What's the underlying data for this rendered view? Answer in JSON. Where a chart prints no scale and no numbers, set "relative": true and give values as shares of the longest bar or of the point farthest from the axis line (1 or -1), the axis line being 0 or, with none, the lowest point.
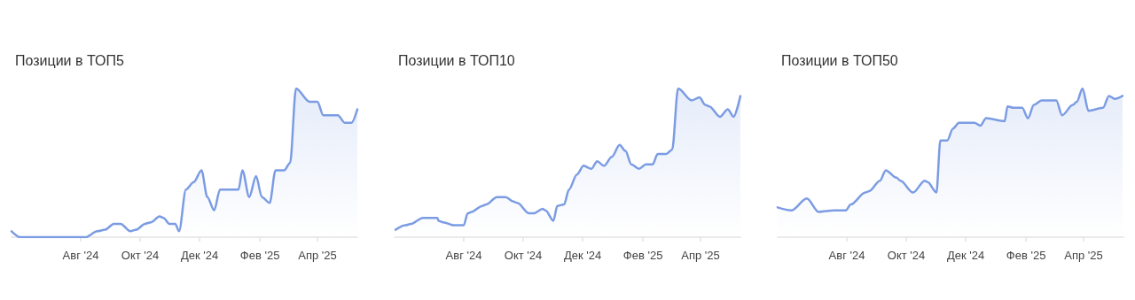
{
  "chart_data": [
    {
      "type": "area",
      "title": "Позиции в ТОП5",
      "color": "#7b9ce3",
      "relative": true,
      "marker": "none",
      "xlim": [
        "2024-05-22",
        "2025-05-12"
      ],
      "xticks": [
        {
          "value": "2024-08-01",
          "label": "Авг '24"
        },
        {
          "value": "2024-10-01",
          "label": "Окт '24"
        },
        {
          "value": "2024-12-01",
          "label": "Дек '24"
        },
        {
          "value": "2025-02-01",
          "label": "Фев '25"
        },
        {
          "value": "2025-04-01",
          "label": "Апр '25"
        }
      ],
      "x": [
        "2024-05-22",
        "2024-05-31",
        "2024-08-06",
        "2024-08-18",
        "2024-08-26",
        "2024-09-04",
        "2024-09-11",
        "2024-09-21",
        "2024-09-27",
        "2024-10-06",
        "2024-10-12",
        "2024-10-21",
        "2024-10-25",
        "2024-10-31",
        "2024-11-06",
        "2024-11-10",
        "2024-11-17",
        "2024-11-25",
        "2024-12-03",
        "2024-12-09",
        "2024-12-16",
        "2024-12-22",
        "2025-01-10",
        "2025-01-14",
        "2025-01-21",
        "2025-01-28",
        "2025-02-03",
        "2025-02-11",
        "2025-02-17",
        "2025-02-26",
        "2025-03-04",
        "2025-03-10",
        "2025-03-24",
        "2025-04-01",
        "2025-04-07",
        "2025-04-22",
        "2025-04-29",
        "2025-05-06",
        "2025-05-12"
      ],
      "values": [
        0.04,
        0,
        0,
        0.04,
        0.05,
        0.09,
        0.09,
        0.04,
        0.05,
        0.09,
        0.1,
        0.14,
        0.13,
        0.09,
        0.09,
        0.04,
        0.32,
        0.37,
        0.45,
        0.27,
        0.18,
        0.32,
        0.32,
        0.45,
        0.27,
        0.41,
        0.27,
        0.23,
        0.45,
        0.45,
        0.5,
        1,
        0.91,
        0.91,
        0.82,
        0.82,
        0.77,
        0.77,
        0.86
      ]
    },
    {
      "type": "area",
      "title": "Позиции в ТОП10",
      "color": "#7b9ce3",
      "relative": true,
      "marker": "none",
      "xlim": [
        "2024-05-22",
        "2025-05-12"
      ],
      "xticks": [
        {
          "value": "2024-08-01",
          "label": "Авг '24"
        },
        {
          "value": "2024-10-01",
          "label": "Окт '24"
        },
        {
          "value": "2024-12-01",
          "label": "Дек '24"
        },
        {
          "value": "2025-02-01",
          "label": "Фев '25"
        },
        {
          "value": "2025-04-01",
          "label": "Апр '25"
        }
      ],
      "x": [
        "2024-05-23",
        "2024-06-02",
        "2024-06-08",
        "2024-06-20",
        "2024-07-05",
        "2024-07-06",
        "2024-07-11",
        "2024-07-22",
        "2024-08-01",
        "2024-08-05",
        "2024-08-09",
        "2024-08-20",
        "2024-08-24",
        "2024-09-04",
        "2024-09-13",
        "2024-09-21",
        "2024-09-25",
        "2024-10-07",
        "2024-10-12",
        "2024-10-21",
        "2024-10-24",
        "2024-11-01",
        "2024-11-05",
        "2024-11-12",
        "2024-11-17",
        "2024-11-25",
        "2024-12-02",
        "2024-12-10",
        "2024-12-16",
        "2024-12-23",
        "2024-12-31",
        "2025-01-08",
        "2025-01-14",
        "2025-01-20",
        "2025-01-28",
        "2025-02-04",
        "2025-02-11",
        "2025-02-16",
        "2025-02-25",
        "2025-03-03",
        "2025-03-09",
        "2025-03-23",
        "2025-03-31",
        "2025-04-06",
        "2025-04-10",
        "2025-04-21",
        "2025-04-29",
        "2025-05-05",
        "2025-05-12"
      ],
      "values": [
        0.05,
        0.08,
        0.09,
        0.13,
        0.13,
        0.11,
        0.1,
        0.08,
        0.08,
        0.16,
        0.17,
        0.21,
        0.22,
        0.27,
        0.27,
        0.24,
        0.23,
        0.16,
        0.16,
        0.19,
        0.18,
        0.11,
        0.21,
        0.22,
        0.32,
        0.42,
        0.48,
        0.46,
        0.51,
        0.48,
        0.54,
        0.62,
        0.58,
        0.49,
        0.46,
        0.49,
        0.49,
        0.56,
        0.56,
        0.59,
        1,
        0.92,
        0.94,
        0.89,
        0.88,
        0.81,
        0.86,
        0.81,
        0.95
      ]
    },
    {
      "type": "area",
      "title": "Позиции в ТОП50",
      "color": "#7b9ce3",
      "relative": true,
      "marker": "none",
      "xlim": [
        "2024-05-22",
        "2025-05-12"
      ],
      "xticks": [
        {
          "value": "2024-08-01",
          "label": "Авг '24"
        },
        {
          "value": "2024-10-01",
          "label": "Окт '24"
        },
        {
          "value": "2024-12-01",
          "label": "Дек '24"
        },
        {
          "value": "2025-02-01",
          "label": "Фев '25"
        },
        {
          "value": "2025-04-01",
          "label": "Апр '25"
        }
      ],
      "x": [
        "2024-05-22",
        "2024-06-05",
        "2024-06-21",
        "2024-07-03",
        "2024-07-19",
        "2024-07-31",
        "2024-08-05",
        "2024-08-20",
        "2024-08-24",
        "2024-09-04",
        "2024-09-10",
        "2024-09-21",
        "2024-09-25",
        "2024-10-08",
        "2024-10-20",
        "2024-10-23",
        "2024-11-01",
        "2024-11-05",
        "2024-11-12",
        "2024-11-18",
        "2024-11-24",
        "2024-12-10",
        "2024-12-16",
        "2024-12-22",
        "2025-01-10",
        "2025-01-13",
        "2025-01-19",
        "2025-01-28",
        "2025-02-03",
        "2025-02-09",
        "2025-02-17",
        "2025-03-04",
        "2025-03-10",
        "2025-03-21",
        "2025-03-25",
        "2025-03-31",
        "2025-04-06",
        "2025-04-21",
        "2025-04-27",
        "2025-05-03",
        "2025-05-11"
      ],
      "values": [
        0.2,
        0.18,
        0.26,
        0.17,
        0.18,
        0.18,
        0.22,
        0.3,
        0.31,
        0.38,
        0.45,
        0.4,
        0.38,
        0.3,
        0.38,
        0.37,
        0.3,
        0.65,
        0.65,
        0.73,
        0.77,
        0.77,
        0.75,
        0.8,
        0.78,
        0.88,
        0.87,
        0.87,
        0.8,
        0.89,
        0.92,
        0.92,
        0.82,
        0.89,
        0.91,
        1,
        0.85,
        0.87,
        0.95,
        0.93,
        0.95
      ]
    }
  ]
}
